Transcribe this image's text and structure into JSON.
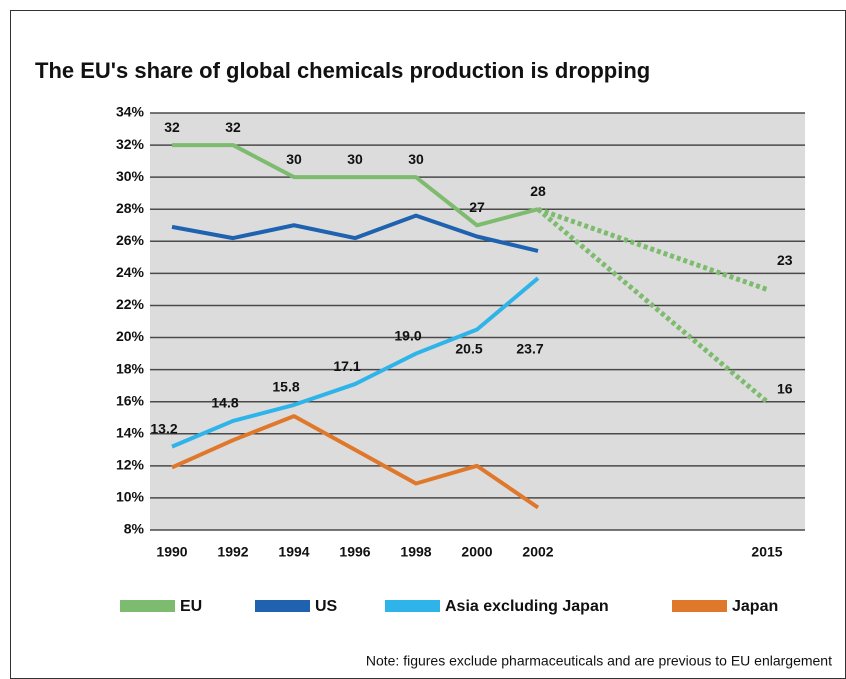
{
  "chart_data": {
    "type": "line",
    "title": "The EU's share of global chemicals production is dropping",
    "note": "Note: figures exclude pharmaceuticals and are previous to EU enlargement",
    "categories": [
      "1990",
      "1992",
      "1994",
      "1996",
      "1998",
      "2000",
      "2002",
      "2015"
    ],
    "ylim": [
      8,
      34
    ],
    "yticks": [
      {
        "value": 8,
        "label": "8%"
      },
      {
        "value": 10,
        "label": "10%"
      },
      {
        "value": 12,
        "label": "12%"
      },
      {
        "value": 14,
        "label": "14%"
      },
      {
        "value": 16,
        "label": "16%"
      },
      {
        "value": 18,
        "label": "18%"
      },
      {
        "value": 20,
        "label": "20%"
      },
      {
        "value": 22,
        "label": "22%"
      },
      {
        "value": 24,
        "label": "24%"
      },
      {
        "value": 26,
        "label": "26%"
      },
      {
        "value": 28,
        "label": "28%"
      },
      {
        "value": 30,
        "label": "30%"
      },
      {
        "value": 32,
        "label": "32%"
      },
      {
        "value": 34,
        "label": "34%"
      }
    ],
    "grid": true,
    "series": [
      {
        "name": "EU",
        "color": "#7dbb6e",
        "values": [
          32,
          32,
          30,
          30,
          30,
          27,
          28,
          null
        ],
        "value_labels": [
          "32",
          "32",
          "30",
          "30",
          "30",
          "27",
          "28",
          null
        ]
      },
      {
        "name": "US",
        "color": "#1f63b0",
        "values": [
          26.9,
          26.2,
          27.0,
          26.2,
          27.6,
          26.3,
          25.4,
          null
        ]
      },
      {
        "name": "Asia excluding Japan",
        "color": "#2fb4ea",
        "values": [
          13.2,
          14.8,
          15.8,
          17.1,
          19.0,
          20.5,
          23.7,
          null
        ],
        "value_labels": [
          "13.2",
          "14.8",
          "15.8",
          "17.1",
          "19.0",
          "20.5",
          "23.7",
          null
        ]
      },
      {
        "name": "Japan",
        "color": "#e0782c",
        "values": [
          11.9,
          13.6,
          15.1,
          13.0,
          10.9,
          12.0,
          9.4,
          null
        ]
      },
      {
        "color": "#7dbb6e",
        "dashed": true,
        "values": [
          null,
          null,
          null,
          null,
          null,
          null,
          28,
          23
        ],
        "value_labels": [
          null,
          null,
          null,
          null,
          null,
          null,
          null,
          "23"
        ]
      },
      {
        "color": "#7dbb6e",
        "dashed": true,
        "values": [
          null,
          null,
          null,
          null,
          null,
          null,
          28,
          16
        ],
        "value_labels": [
          null,
          null,
          null,
          null,
          null,
          null,
          null,
          "16"
        ]
      }
    ]
  }
}
